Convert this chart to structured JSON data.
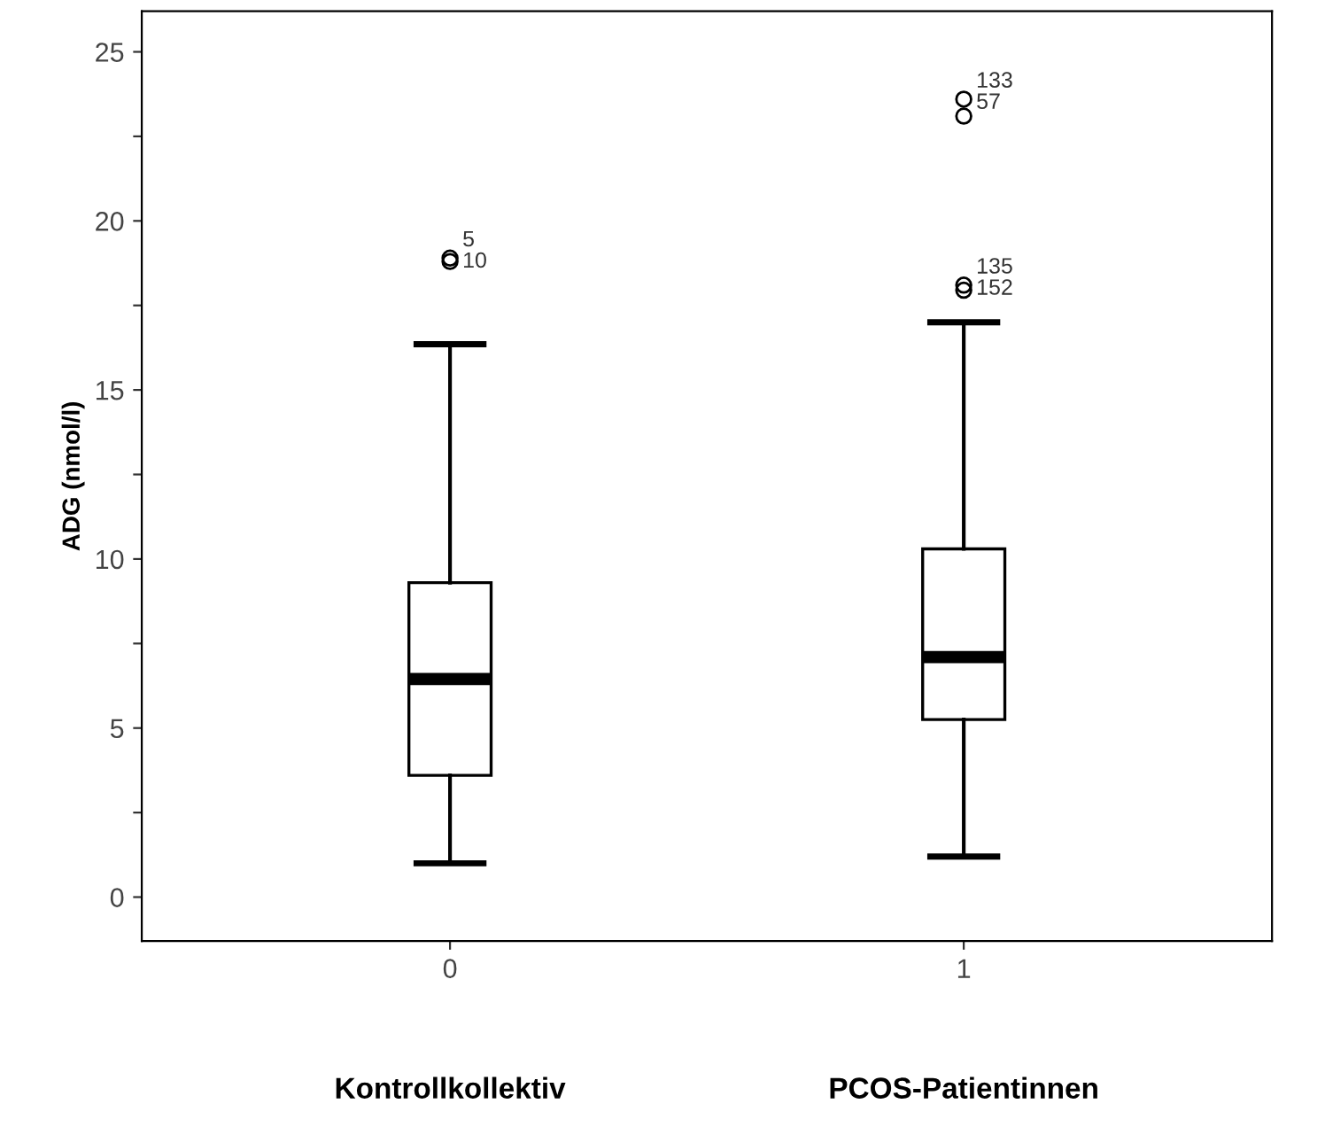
{
  "chart_data": {
    "type": "box",
    "ylabel": "ADG (nmol/l)",
    "categories": [
      "0",
      "1"
    ],
    "boxes": [
      {
        "low": 1.0,
        "q1": 3.6,
        "median": 6.45,
        "q3": 9.3,
        "high": 16.35,
        "outliers": [
          18.9,
          18.8
        ]
      },
      {
        "low": 1.2,
        "q1": 5.25,
        "median": 7.1,
        "q3": 10.3,
        "high": 17.0,
        "outliers": [
          23.6,
          23.1,
          18.1,
          17.95
        ]
      }
    ],
    "ylim": [
      -1.3,
      26.2
    ],
    "yticks": [
      0,
      {
        "value": 2.5,
        "label": null
      },
      5,
      {
        "value": 7.5,
        "label": null
      },
      10,
      {
        "value": 12.5,
        "label": null
      },
      15,
      {
        "value": 17.5,
        "label": null
      },
      20,
      {
        "value": 22.5,
        "label": null
      },
      25
    ],
    "grid": false,
    "annotations": [
      "5",
      "10",
      "133",
      "57",
      "135",
      "152",
      "Kontrollkollektiv",
      "PCOS-Patientinnen"
    ]
  }
}
